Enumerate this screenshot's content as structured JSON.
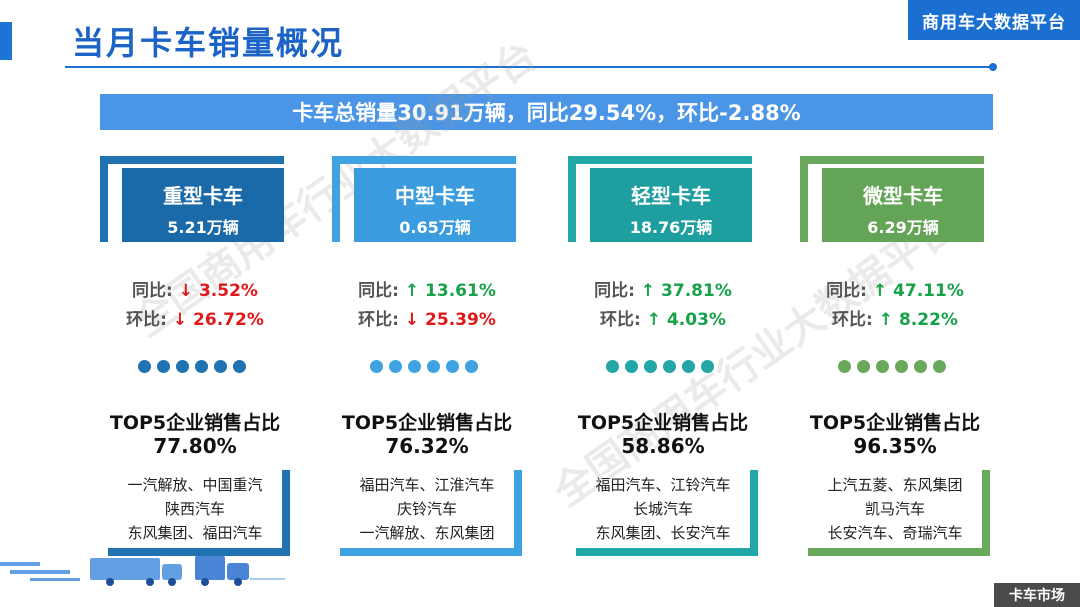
{
  "header": {
    "title": "当月卡车销量概况",
    "brand": "商用车大数据平台"
  },
  "summary": "卡车总销量30.91万辆，同比29.54%，环比-2.88%",
  "watermark": "全国商用车行业大数据平台",
  "footer": {
    "tag": "卡车市场"
  },
  "categories": [
    {
      "name": "重型卡车",
      "sales": "5.21万辆",
      "color": "#1f73b0",
      "box_color": "#1a6aaa",
      "yoy_label": "同比:",
      "yoy_arrow": "↓",
      "yoy_value": "3.52%",
      "yoy_dir": "down",
      "mom_label": "环比:",
      "mom_arrow": "↓",
      "mom_value": "26.72%",
      "mom_dir": "down",
      "top5_title": "TOP5企业销售占比",
      "top5_value": "77.80%",
      "firms": [
        "一汽解放、中国重汽",
        "陕西汽车",
        "东风集团、福田汽车"
      ]
    },
    {
      "name": "中型卡车",
      "sales": "0.65万辆",
      "color": "#3ea3e0",
      "box_color": "#3a9bde",
      "yoy_label": "同比:",
      "yoy_arrow": "↑",
      "yoy_value": "13.61%",
      "yoy_dir": "up",
      "mom_label": "环比:",
      "mom_arrow": "↓",
      "mom_value": "25.39%",
      "mom_dir": "down",
      "top5_title": "TOP5企业销售占比",
      "top5_value": "76.32%",
      "firms": [
        "福田汽车、江淮汽车",
        "庆铃汽车",
        "一汽解放、东风集团"
      ]
    },
    {
      "name": "轻型卡车",
      "sales": "18.76万辆",
      "color": "#22a6a6",
      "box_color": "#1f9ea0",
      "yoy_label": "同比:",
      "yoy_arrow": "↑",
      "yoy_value": "37.81%",
      "yoy_dir": "up",
      "mom_label": "环比:",
      "mom_arrow": "↑",
      "mom_value": "4.03%",
      "mom_dir": "up",
      "top5_title": "TOP5企业销售占比",
      "top5_value": "58.86%",
      "firms": [
        "福田汽车、江铃汽车",
        "长城汽车",
        "东风集团、长安汽车"
      ]
    },
    {
      "name": "微型卡车",
      "sales": "6.29万辆",
      "color": "#6aa85c",
      "box_color": "#63a457",
      "yoy_label": "同比:",
      "yoy_arrow": "↑",
      "yoy_value": "47.11%",
      "yoy_dir": "up",
      "mom_label": "环比:",
      "mom_arrow": "↑",
      "mom_value": "8.22%",
      "mom_dir": "up",
      "top5_title": "TOP5企业销售占比",
      "top5_value": "96.35%",
      "firms": [
        "上汽五菱、东风集团",
        "凯马汽车",
        "长安汽车、奇瑞汽车"
      ]
    }
  ]
}
